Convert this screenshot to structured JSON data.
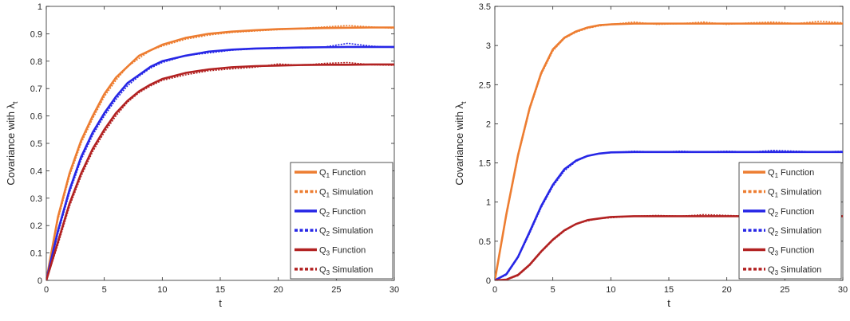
{
  "chart_data": [
    {
      "type": "line",
      "xlabel": "t",
      "ylabel_main": "Covariance with λ",
      "ylabel_sub": "t",
      "xlim": [
        0,
        30
      ],
      "ylim": [
        0,
        1
      ],
      "xticks": [
        "0",
        "5",
        "10",
        "15",
        "20",
        "25",
        "30"
      ],
      "yticks": [
        "0",
        "0.1",
        "0.2",
        "0.3",
        "0.4",
        "0.5",
        "0.6",
        "0.7",
        "0.8",
        "0.9",
        "1"
      ],
      "legend_position": "bottom-right",
      "series": [
        {
          "label_main": "Q",
          "label_sub": "1",
          "label_rest": "Function",
          "color": "#ED7D31",
          "style": "solid",
          "x": [
            0,
            1,
            2,
            3,
            4,
            5,
            6,
            7,
            8,
            9,
            10,
            12,
            14,
            16,
            18,
            20,
            22,
            24,
            26,
            28,
            30
          ],
          "values": [
            0,
            0.23,
            0.39,
            0.51,
            0.6,
            0.68,
            0.74,
            0.78,
            0.82,
            0.84,
            0.86,
            0.885,
            0.9,
            0.908,
            0.913,
            0.917,
            0.919,
            0.921,
            0.922,
            0.923,
            0.923
          ]
        },
        {
          "label_main": "Q",
          "label_sub": "1",
          "label_rest": "Simulation",
          "color": "#ED7D31",
          "style": "dotted",
          "x": [
            0,
            1,
            2,
            3,
            4,
            5,
            6,
            7,
            8,
            9,
            10,
            12,
            14,
            16,
            18,
            20,
            22,
            24,
            26,
            28,
            30
          ],
          "values": [
            0,
            0.22,
            0.38,
            0.5,
            0.59,
            0.67,
            0.73,
            0.78,
            0.81,
            0.84,
            0.855,
            0.88,
            0.895,
            0.905,
            0.91,
            0.915,
            0.92,
            0.925,
            0.93,
            0.925,
            0.92
          ]
        },
        {
          "label_main": "Q",
          "label_sub": "2",
          "label_rest": "Function",
          "color": "#2727E6",
          "style": "solid",
          "x": [
            0,
            1,
            2,
            3,
            4,
            5,
            6,
            7,
            8,
            9,
            10,
            12,
            14,
            16,
            18,
            20,
            22,
            24,
            26,
            28,
            30
          ],
          "values": [
            0,
            0.18,
            0.33,
            0.45,
            0.54,
            0.61,
            0.67,
            0.72,
            0.75,
            0.78,
            0.8,
            0.82,
            0.835,
            0.842,
            0.846,
            0.848,
            0.85,
            0.851,
            0.852,
            0.852,
            0.852
          ]
        },
        {
          "label_main": "Q",
          "label_sub": "2",
          "label_rest": "Simulation",
          "color": "#2727E6",
          "style": "dotted",
          "x": [
            0,
            1,
            2,
            3,
            4,
            5,
            6,
            7,
            8,
            9,
            10,
            12,
            14,
            16,
            18,
            20,
            22,
            24,
            26,
            28,
            30
          ],
          "values": [
            0,
            0.17,
            0.32,
            0.44,
            0.53,
            0.6,
            0.66,
            0.71,
            0.745,
            0.775,
            0.795,
            0.82,
            0.83,
            0.84,
            0.845,
            0.85,
            0.848,
            0.852,
            0.865,
            0.855,
            0.85
          ]
        },
        {
          "label_main": "Q",
          "label_sub": "3",
          "label_rest": "Function",
          "color": "#B22222",
          "style": "solid",
          "x": [
            0,
            1,
            2,
            3,
            4,
            5,
            6,
            7,
            8,
            9,
            10,
            12,
            14,
            16,
            18,
            20,
            22,
            24,
            26,
            28,
            30
          ],
          "values": [
            0,
            0.14,
            0.28,
            0.39,
            0.48,
            0.55,
            0.61,
            0.655,
            0.69,
            0.715,
            0.735,
            0.757,
            0.77,
            0.778,
            0.782,
            0.784,
            0.786,
            0.787,
            0.787,
            0.788,
            0.788
          ]
        },
        {
          "label_main": "Q",
          "label_sub": "3",
          "label_rest": "Simulation",
          "color": "#B22222",
          "style": "dotted",
          "x": [
            0,
            1,
            2,
            3,
            4,
            5,
            6,
            7,
            8,
            9,
            10,
            12,
            14,
            16,
            18,
            20,
            22,
            24,
            26,
            28,
            30
          ],
          "values": [
            0,
            0.13,
            0.27,
            0.38,
            0.47,
            0.54,
            0.6,
            0.65,
            0.685,
            0.71,
            0.73,
            0.75,
            0.765,
            0.772,
            0.778,
            0.79,
            0.785,
            0.792,
            0.795,
            0.787,
            0.785
          ]
        }
      ]
    },
    {
      "type": "line",
      "xlabel": "t",
      "ylabel_main": "Covariance with λ",
      "ylabel_sub": "t",
      "xlim": [
        0,
        30
      ],
      "ylim": [
        0,
        3.5
      ],
      "xticks": [
        "0",
        "5",
        "10",
        "15",
        "20",
        "25",
        "30"
      ],
      "yticks": [
        "0",
        "0.5",
        "1",
        "1.5",
        "2",
        "2.5",
        "3",
        "3.5"
      ],
      "legend_position": "bottom-right",
      "series": [
        {
          "label_main": "Q",
          "label_sub": "1",
          "label_rest": "Function",
          "color": "#ED7D31",
          "style": "solid",
          "x": [
            0,
            1,
            2,
            3,
            4,
            5,
            6,
            7,
            8,
            9,
            10,
            12,
            14,
            16,
            18,
            20,
            22,
            24,
            26,
            28,
            30
          ],
          "values": [
            0,
            0.85,
            1.6,
            2.2,
            2.65,
            2.95,
            3.1,
            3.18,
            3.23,
            3.26,
            3.27,
            3.28,
            3.28,
            3.28,
            3.28,
            3.28,
            3.28,
            3.28,
            3.28,
            3.28,
            3.28
          ]
        },
        {
          "label_main": "Q",
          "label_sub": "1",
          "label_rest": "Simulation",
          "color": "#ED7D31",
          "style": "dotted",
          "x": [
            0,
            1,
            2,
            3,
            4,
            5,
            6,
            7,
            8,
            9,
            10,
            12,
            14,
            16,
            18,
            20,
            22,
            24,
            26,
            28,
            30
          ],
          "values": [
            0,
            0.83,
            1.58,
            2.18,
            2.63,
            2.93,
            3.09,
            3.17,
            3.22,
            3.25,
            3.27,
            3.3,
            3.27,
            3.28,
            3.3,
            3.27,
            3.29,
            3.3,
            3.28,
            3.31,
            3.29
          ]
        },
        {
          "label_main": "Q",
          "label_sub": "2",
          "label_rest": "Function",
          "color": "#2727E6",
          "style": "solid",
          "x": [
            0,
            1,
            2,
            3,
            4,
            5,
            6,
            7,
            8,
            9,
            10,
            12,
            14,
            16,
            18,
            20,
            22,
            24,
            26,
            28,
            30
          ],
          "values": [
            0,
            0.08,
            0.3,
            0.62,
            0.95,
            1.22,
            1.42,
            1.53,
            1.59,
            1.62,
            1.635,
            1.64,
            1.64,
            1.64,
            1.64,
            1.64,
            1.64,
            1.64,
            1.64,
            1.64,
            1.64
          ]
        },
        {
          "label_main": "Q",
          "label_sub": "2",
          "label_rest": "Simulation",
          "color": "#2727E6",
          "style": "dotted",
          "x": [
            0,
            1,
            2,
            3,
            4,
            5,
            6,
            7,
            8,
            9,
            10,
            12,
            14,
            16,
            18,
            20,
            22,
            24,
            26,
            28,
            30
          ],
          "values": [
            0,
            0.07,
            0.29,
            0.6,
            0.93,
            1.2,
            1.4,
            1.52,
            1.59,
            1.62,
            1.63,
            1.65,
            1.64,
            1.65,
            1.64,
            1.65,
            1.64,
            1.66,
            1.65,
            1.64,
            1.65
          ]
        },
        {
          "label_main": "Q",
          "label_sub": "3",
          "label_rest": "Function",
          "color": "#B22222",
          "style": "solid",
          "x": [
            0,
            1,
            2,
            3,
            4,
            5,
            6,
            7,
            8,
            9,
            10,
            12,
            14,
            16,
            18,
            20,
            22,
            24,
            26,
            28,
            30
          ],
          "values": [
            0,
            0.01,
            0.07,
            0.2,
            0.37,
            0.52,
            0.64,
            0.72,
            0.77,
            0.79,
            0.81,
            0.82,
            0.82,
            0.82,
            0.82,
            0.82,
            0.82,
            0.82,
            0.82,
            0.82,
            0.82
          ]
        },
        {
          "label_main": "Q",
          "label_sub": "3",
          "label_rest": "Simulation",
          "color": "#B22222",
          "style": "dotted",
          "x": [
            0,
            1,
            2,
            3,
            4,
            5,
            6,
            7,
            8,
            9,
            10,
            12,
            14,
            16,
            18,
            20,
            22,
            24,
            26,
            28,
            30
          ],
          "values": [
            0,
            0.01,
            0.06,
            0.19,
            0.36,
            0.51,
            0.63,
            0.72,
            0.76,
            0.79,
            0.8,
            0.82,
            0.83,
            0.82,
            0.84,
            0.83,
            0.82,
            0.84,
            0.83,
            0.82,
            0.82
          ]
        }
      ]
    }
  ]
}
